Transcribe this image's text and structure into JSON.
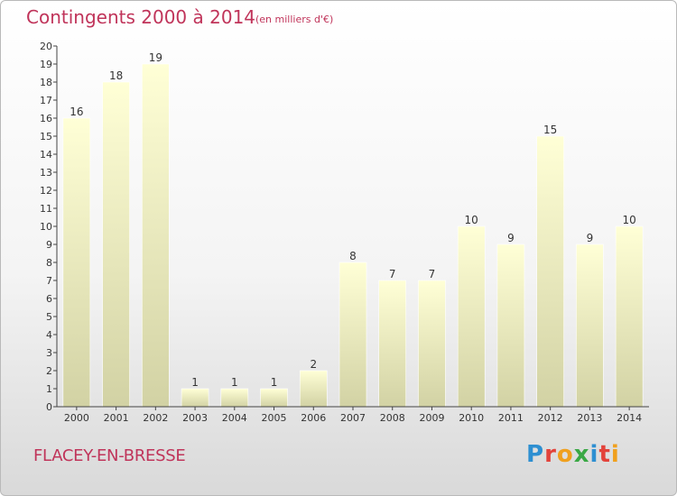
{
  "header": {
    "title": "Contingents 2000 à 2014",
    "subtitle": "(en milliers d'€)"
  },
  "footer": {
    "commune": "FLACEY-EN-BRESSE",
    "brand": "Proxiti",
    "brand_colors": [
      "#2e8fd1",
      "#e3433b",
      "#f0a01e",
      "#3aa845",
      "#2e8fd1",
      "#e3433b",
      "#f0a01e"
    ]
  },
  "colors": {
    "title": "#c0345a",
    "bar_top": "#ffffd6",
    "bar_bottom": "#d2d2a4",
    "axis": "#444444",
    "text": "#333333"
  },
  "chart_data": {
    "type": "bar",
    "categories": [
      "2000",
      "2001",
      "2002",
      "2003",
      "2004",
      "2005",
      "2006",
      "2007",
      "2008",
      "2009",
      "2010",
      "2011",
      "2012",
      "2013",
      "2014"
    ],
    "values": [
      16,
      18,
      19,
      1,
      1,
      1,
      2,
      8,
      7,
      7,
      10,
      9,
      15,
      9,
      10
    ],
    "title": "Contingents 2000 à 2014",
    "subtitle": "(en milliers d'€)",
    "ylim": [
      0,
      20
    ],
    "yticks": [
      0,
      1,
      2,
      3,
      4,
      5,
      6,
      7,
      8,
      9,
      10,
      11,
      12,
      13,
      14,
      15,
      16,
      17,
      18,
      19,
      20
    ],
    "grid": false,
    "legend": "none"
  }
}
